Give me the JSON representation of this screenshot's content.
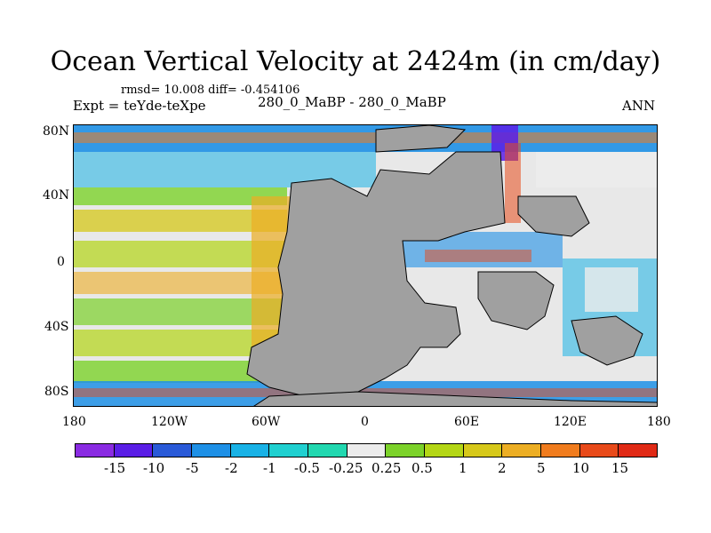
{
  "title": "Ocean Vertical Velocity at 2424m (in cm/day)",
  "stats_text": "rmsd= 10.008 diff= -0.454106",
  "left_label": "Expt = teYde-teXpe",
  "center_label": "280_0_MaBP - 280_0_MaBP",
  "right_label": "ANN",
  "lat_labels": [
    "80N",
    "40N",
    "0",
    "40S",
    "80S"
  ],
  "lon_labels": [
    "180",
    "120W",
    "60W",
    "0",
    "60E",
    "120E",
    "180"
  ],
  "colorbar": {
    "labels": [
      "-15",
      "-10",
      "-5",
      "-2",
      "-1",
      "-0.5",
      "-0.25",
      "0.25",
      "0.5",
      "1",
      "2",
      "5",
      "10",
      "15"
    ],
    "colors": [
      "#8a2be2",
      "#5a1ee6",
      "#2a5ad8",
      "#1e90e6",
      "#19b2e6",
      "#20d0d0",
      "#22d8b0",
      "#ececec",
      "#7cd22a",
      "#b4d616",
      "#d6c81a",
      "#ecae24",
      "#f07c1e",
      "#e84a1a",
      "#e02a16"
    ]
  }
}
